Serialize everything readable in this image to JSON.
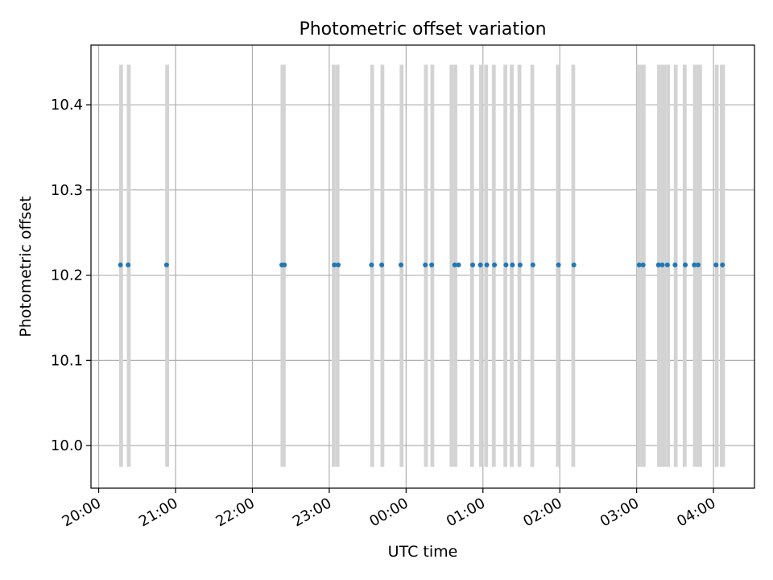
{
  "chart_data": {
    "type": "scatter",
    "title": "Photometric offset variation",
    "xlabel": "UTC time",
    "ylabel": "Photometric offset",
    "xlim": [
      "19:54",
      "04:32"
    ],
    "ylim": [
      9.95,
      10.47
    ],
    "x_ticks": [
      "20:00",
      "21:00",
      "22:00",
      "23:00",
      "00:00",
      "01:00",
      "02:00",
      "03:00",
      "04:00"
    ],
    "y_ticks": [
      "10.0",
      "10.1",
      "10.2",
      "10.3",
      "10.4"
    ],
    "grid": true,
    "colors": {
      "points": "#1f77b4",
      "bands": "#d3d3d3",
      "grid": "#b0b0b0"
    },
    "bands_y_range": [
      9.975,
      10.447
    ],
    "bands": [
      [
        "20:16",
        "20:19"
      ],
      [
        "20:22",
        "20:25"
      ],
      [
        "20:52",
        "20:55"
      ],
      [
        "22:22",
        "22:26"
      ],
      [
        "23:02",
        "23:05"
      ],
      [
        "23:05",
        "23:08"
      ],
      [
        "23:32",
        "23:35"
      ],
      [
        "23:40",
        "23:43"
      ],
      [
        "23:55",
        "23:58"
      ],
      [
        "00:14",
        "00:17"
      ],
      [
        "00:19",
        "00:22"
      ],
      [
        "00:34",
        "00:37"
      ],
      [
        "00:37",
        "00:40"
      ],
      [
        "00:50",
        "00:53"
      ],
      [
        "00:57",
        "01:00"
      ],
      [
        "01:01",
        "01:04"
      ],
      [
        "01:07",
        "01:10"
      ],
      [
        "01:16",
        "01:19"
      ],
      [
        "01:21",
        "01:24"
      ],
      [
        "01:27",
        "01:30"
      ],
      [
        "01:37",
        "01:40"
      ],
      [
        "01:57",
        "02:00"
      ],
      [
        "02:09",
        "02:12"
      ],
      [
        "03:00",
        "03:03"
      ],
      [
        "03:03",
        "03:07"
      ],
      [
        "03:16",
        "03:19"
      ],
      [
        "03:19",
        "03:23"
      ],
      [
        "03:23",
        "03:26"
      ],
      [
        "03:29",
        "03:32"
      ],
      [
        "03:36",
        "03:39"
      ],
      [
        "03:44",
        "03:47"
      ],
      [
        "03:47",
        "03:51"
      ],
      [
        "04:01",
        "04:04"
      ],
      [
        "04:05",
        "04:09"
      ]
    ],
    "points": [
      [
        "20:17",
        10.212
      ],
      [
        "20:23",
        10.212
      ],
      [
        "20:53",
        10.212
      ],
      [
        "22:23",
        10.212
      ],
      [
        "22:25",
        10.212
      ],
      [
        "23:04",
        10.212
      ],
      [
        "23:07",
        10.212
      ],
      [
        "23:33",
        10.212
      ],
      [
        "23:41",
        10.212
      ],
      [
        "23:56",
        10.212
      ],
      [
        "00:15",
        10.212
      ],
      [
        "00:20",
        10.212
      ],
      [
        "00:38",
        10.212
      ],
      [
        "00:41",
        10.212
      ],
      [
        "00:52",
        10.212
      ],
      [
        "00:58",
        10.212
      ],
      [
        "01:03",
        10.212
      ],
      [
        "01:09",
        10.212
      ],
      [
        "01:18",
        10.212
      ],
      [
        "01:23",
        10.212
      ],
      [
        "01:29",
        10.212
      ],
      [
        "01:39",
        10.212
      ],
      [
        "01:59",
        10.212
      ],
      [
        "02:11",
        10.212
      ],
      [
        "03:02",
        10.212
      ],
      [
        "03:05",
        10.212
      ],
      [
        "03:17",
        10.212
      ],
      [
        "03:20",
        10.212
      ],
      [
        "03:24",
        10.212
      ],
      [
        "03:30",
        10.212
      ],
      [
        "03:38",
        10.212
      ],
      [
        "03:45",
        10.212
      ],
      [
        "03:48",
        10.212
      ],
      [
        "04:02",
        10.212
      ],
      [
        "04:07",
        10.212
      ]
    ]
  }
}
